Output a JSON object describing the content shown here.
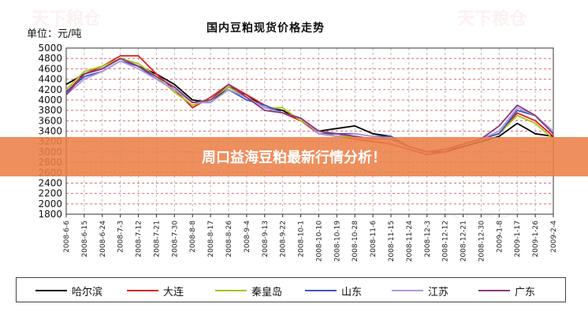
{
  "header": {
    "unit_label": "单位：元/吨"
  },
  "banner": {
    "text": "周口益海豆粕最新行情分析！"
  },
  "watermark": {
    "text": "天下粮仓"
  },
  "chart_data": {
    "type": "line",
    "title": "国内豆粕现货价格走势",
    "ylim": [
      1800,
      5000
    ],
    "yticks": [
      1800,
      2000,
      2200,
      2400,
      2600,
      2800,
      3000,
      3200,
      3400,
      3600,
      3800,
      4000,
      4200,
      4400,
      4600,
      4800,
      5000
    ],
    "categories": [
      "2008-6-6",
      "2008-6-15",
      "2008-6-24",
      "2008-7-3",
      "2008-7-12",
      "2008-7-21",
      "2008-7-30",
      "2008-8-8",
      "2008-8-17",
      "2008-8-26",
      "2008-9-4",
      "2008-9-13",
      "2008-9-22",
      "2008-10-1",
      "2008-10-10",
      "2008-10-19",
      "2008-10-28",
      "2008-11-6",
      "2008-11-15",
      "2008-11-24",
      "2008-12-3",
      "2008-12-12",
      "2008-12-21",
      "2008-12-30",
      "2009-1-8",
      "2009-1-17",
      "2009-1-26",
      "2009-2-4"
    ],
    "grid": true,
    "legend_position": "bottom",
    "series": [
      {
        "name": "哈尔滨",
        "color": "#000000",
        "values": [
          4300,
          4500,
          4600,
          4800,
          4650,
          4500,
          4300,
          4000,
          3950,
          4250,
          4100,
          3850,
          3800,
          3600,
          3400,
          3450,
          3500,
          3350,
          3300,
          3100,
          3000,
          3000,
          3100,
          3200,
          3300,
          3550,
          3350,
          3300
        ]
      },
      {
        "name": "大连",
        "color": "#dd1f1f",
        "values": [
          4150,
          4500,
          4650,
          4850,
          4850,
          4500,
          4200,
          3850,
          4050,
          4300,
          4100,
          3900,
          3750,
          3600,
          3350,
          3300,
          3250,
          3200,
          3150,
          3050,
          2950,
          3000,
          3150,
          3250,
          3350,
          3750,
          3600,
          3300
        ]
      },
      {
        "name": "秦皇岛",
        "color": "#a8c410",
        "values": [
          4200,
          4550,
          4650,
          4800,
          4700,
          4450,
          4150,
          3900,
          4000,
          4250,
          4050,
          3850,
          3850,
          3600,
          3400,
          3300,
          3300,
          3250,
          3250,
          3100,
          3000,
          3050,
          3150,
          3250,
          3350,
          3700,
          3550,
          3250
        ]
      },
      {
        "name": "山东",
        "color": "#3a55c8",
        "values": [
          4150,
          4450,
          4550,
          4750,
          4650,
          4400,
          4200,
          3950,
          3950,
          4200,
          4000,
          3900,
          3750,
          3650,
          3350,
          3350,
          3350,
          3300,
          3300,
          3100,
          3000,
          3050,
          3150,
          3250,
          3350,
          3800,
          3700,
          3350
        ]
      },
      {
        "name": "江苏",
        "color": "#b09ae0",
        "values": [
          4100,
          4400,
          4550,
          4750,
          4600,
          4400,
          4200,
          3950,
          3950,
          4200,
          4050,
          3850,
          3750,
          3650,
          3350,
          3300,
          3350,
          3300,
          3250,
          3100,
          3000,
          3050,
          3150,
          3250,
          3400,
          3850,
          3700,
          3400
        ]
      },
      {
        "name": "广东",
        "color": "#8a3a78",
        "values": [
          4100,
          4500,
          4600,
          4800,
          4650,
          4450,
          4250,
          3950,
          4000,
          4300,
          4050,
          3800,
          3750,
          3650,
          3400,
          3350,
          3300,
          3250,
          3250,
          3100,
          3000,
          3050,
          3150,
          3250,
          3500,
          3900,
          3700,
          3350
        ]
      }
    ]
  }
}
